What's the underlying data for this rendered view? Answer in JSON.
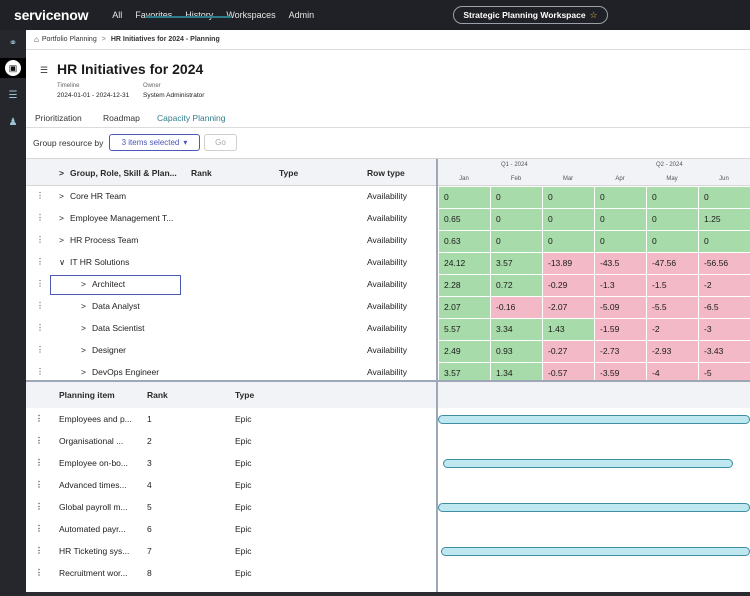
{
  "brand": {
    "logo": "servicenow"
  },
  "nav": {
    "items": [
      "All",
      "Favorites",
      "History",
      "Workspaces",
      "Admin"
    ],
    "workspace": "Strategic Planning Workspace"
  },
  "rail": {
    "icons": [
      "lightbulb-icon",
      "briefcase-icon",
      "list-icon",
      "people-icon"
    ]
  },
  "breadcrumb": {
    "home": "Portfolio Planning",
    "current": "HR Initiatives for 2024 - Planning"
  },
  "header": {
    "title": "HR Initiatives for 2024",
    "timeline_label": "Timeline",
    "timeline_value": "2024-01-01 - 2024-12-31",
    "owner_label": "Owner",
    "owner_value": "System Administrator"
  },
  "tabs": [
    "Prioritization",
    "Roadmap",
    "Capacity Planning"
  ],
  "toolbar": {
    "group_label": "Group resource by",
    "selected": "3 items selected",
    "go": "Go"
  },
  "capacity": {
    "columns": [
      "Group, Role, Skill & Plan...",
      "Rank",
      "Type",
      "Row type"
    ],
    "quarters": [
      "Q1 - 2024",
      "Q2 - 2024"
    ],
    "months": [
      "Jan",
      "Feb",
      "Mar",
      "Apr",
      "May",
      "Jun"
    ],
    "rows": [
      {
        "name": "Core HR Team",
        "level": 0,
        "expanded": false,
        "row_type": "Availability",
        "values": [
          "0",
          "0",
          "0",
          "0",
          "0",
          "0"
        ]
      },
      {
        "name": "Employee Management T...",
        "level": 0,
        "expanded": false,
        "row_type": "Availability",
        "values": [
          "0.65",
          "0",
          "0",
          "0",
          "0",
          "1.25"
        ]
      },
      {
        "name": "HR Process Team",
        "level": 0,
        "expanded": false,
        "row_type": "Availability",
        "values": [
          "0.63",
          "0",
          "0",
          "0",
          "0",
          "0"
        ]
      },
      {
        "name": "IT HR Solutions",
        "level": 0,
        "expanded": true,
        "row_type": "Availability",
        "values": [
          "24.12",
          "3.57",
          "-13.89",
          "-43.5",
          "-47.56",
          "-56.56"
        ]
      },
      {
        "name": "Architect",
        "level": 1,
        "expanded": false,
        "row_type": "Availability",
        "values": [
          "2.28",
          "0.72",
          "-0.29",
          "-1.3",
          "-1.5",
          "-2"
        ]
      },
      {
        "name": "Data Analyst",
        "level": 1,
        "expanded": false,
        "row_type": "Availability",
        "values": [
          "2.07",
          "-0.16",
          "-2.07",
          "-5.09",
          "-5.5",
          "-6.5"
        ]
      },
      {
        "name": "Data Scientist",
        "level": 1,
        "expanded": false,
        "row_type": "Availability",
        "values": [
          "5.57",
          "3.34",
          "1.43",
          "-1.59",
          "-2",
          "-3"
        ]
      },
      {
        "name": "Designer",
        "level": 1,
        "expanded": false,
        "row_type": "Availability",
        "values": [
          "2.49",
          "0.93",
          "-0.27",
          "-2.73",
          "-2.93",
          "-3.43"
        ]
      },
      {
        "name": "DevOps Engineer",
        "level": 1,
        "expanded": false,
        "row_type": "Availability",
        "values": [
          "3.57",
          "1.34",
          "-0.57",
          "-3.59",
          "-4",
          "-5"
        ]
      }
    ],
    "colors": {
      "positive": "#a7dba9",
      "negative": "#f3b9c6"
    }
  },
  "planning": {
    "columns": [
      "Planning item",
      "Rank",
      "Type"
    ],
    "rows": [
      {
        "name": "Employees and p...",
        "rank": "1",
        "type": "Epic"
      },
      {
        "name": "Organisational ...",
        "rank": "2",
        "type": "Epic"
      },
      {
        "name": "Employee on-bo...",
        "rank": "3",
        "type": "Epic"
      },
      {
        "name": "Advanced times...",
        "rank": "4",
        "type": "Epic"
      },
      {
        "name": "Global payroll m...",
        "rank": "5",
        "type": "Epic"
      },
      {
        "name": "Automated payr...",
        "rank": "6",
        "type": "Epic"
      },
      {
        "name": "HR Ticketing sys...",
        "rank": "7",
        "type": "Epic"
      },
      {
        "name": "Recruitment wor...",
        "rank": "8",
        "type": "Epic"
      }
    ]
  }
}
